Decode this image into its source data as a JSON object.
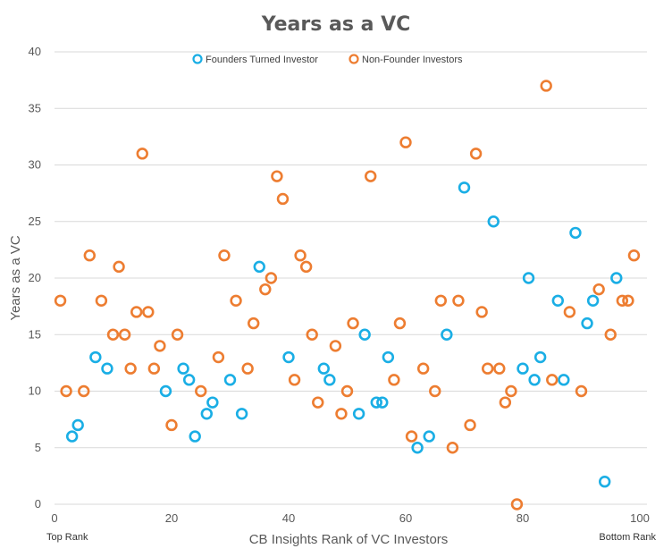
{
  "chart_data": {
    "type": "scatter",
    "title": "Years as a VC",
    "xlabel": "CB Insights Rank of VC Investors",
    "ylabel": "Years as a VC",
    "xlim": [
      0,
      100
    ],
    "ylim": [
      0,
      40
    ],
    "xticks": [
      0,
      20,
      40,
      60,
      80,
      100
    ],
    "yticks": [
      0,
      5,
      10,
      15,
      20,
      25,
      30,
      35,
      40
    ],
    "grid": "horizontal",
    "legend_position": "top-center",
    "x_start_label": "Top Rank",
    "x_end_label": "Bottom Rank",
    "series": [
      {
        "name": "Founders Turned Investor",
        "color": "#1aaee5",
        "points": [
          {
            "x": 3,
            "y": 6
          },
          {
            "x": 4,
            "y": 7
          },
          {
            "x": 7,
            "y": 13
          },
          {
            "x": 9,
            "y": 12
          },
          {
            "x": 19,
            "y": 10
          },
          {
            "x": 22,
            "y": 12
          },
          {
            "x": 23,
            "y": 11
          },
          {
            "x": 24,
            "y": 6
          },
          {
            "x": 26,
            "y": 8
          },
          {
            "x": 27,
            "y": 9
          },
          {
            "x": 30,
            "y": 11
          },
          {
            "x": 32,
            "y": 8
          },
          {
            "x": 35,
            "y": 21
          },
          {
            "x": 40,
            "y": 13
          },
          {
            "x": 46,
            "y": 12
          },
          {
            "x": 47,
            "y": 11
          },
          {
            "x": 52,
            "y": 8
          },
          {
            "x": 53,
            "y": 15
          },
          {
            "x": 55,
            "y": 9
          },
          {
            "x": 56,
            "y": 9
          },
          {
            "x": 57,
            "y": 13
          },
          {
            "x": 62,
            "y": 5
          },
          {
            "x": 64,
            "y": 6
          },
          {
            "x": 67,
            "y": 15
          },
          {
            "x": 70,
            "y": 28
          },
          {
            "x": 75,
            "y": 25
          },
          {
            "x": 80,
            "y": 12
          },
          {
            "x": 81,
            "y": 20
          },
          {
            "x": 82,
            "y": 11
          },
          {
            "x": 83,
            "y": 13
          },
          {
            "x": 86,
            "y": 18
          },
          {
            "x": 87,
            "y": 11
          },
          {
            "x": 89,
            "y": 24
          },
          {
            "x": 91,
            "y": 16
          },
          {
            "x": 92,
            "y": 18
          },
          {
            "x": 94,
            "y": 2
          },
          {
            "x": 96,
            "y": 20
          }
        ]
      },
      {
        "name": "Non-Founder Investors",
        "color": "#ed7d31",
        "points": [
          {
            "x": 1,
            "y": 18
          },
          {
            "x": 2,
            "y": 10
          },
          {
            "x": 5,
            "y": 10
          },
          {
            "x": 6,
            "y": 22
          },
          {
            "x": 8,
            "y": 18
          },
          {
            "x": 10,
            "y": 15
          },
          {
            "x": 11,
            "y": 21
          },
          {
            "x": 12,
            "y": 15
          },
          {
            "x": 13,
            "y": 12
          },
          {
            "x": 14,
            "y": 17
          },
          {
            "x": 15,
            "y": 31
          },
          {
            "x": 16,
            "y": 17
          },
          {
            "x": 17,
            "y": 12
          },
          {
            "x": 18,
            "y": 14
          },
          {
            "x": 20,
            "y": 7
          },
          {
            "x": 21,
            "y": 15
          },
          {
            "x": 25,
            "y": 10
          },
          {
            "x": 28,
            "y": 13
          },
          {
            "x": 29,
            "y": 22
          },
          {
            "x": 31,
            "y": 18
          },
          {
            "x": 33,
            "y": 12
          },
          {
            "x": 34,
            "y": 16
          },
          {
            "x": 36,
            "y": 19
          },
          {
            "x": 37,
            "y": 20
          },
          {
            "x": 38,
            "y": 29
          },
          {
            "x": 39,
            "y": 27
          },
          {
            "x": 41,
            "y": 11
          },
          {
            "x": 42,
            "y": 22
          },
          {
            "x": 43,
            "y": 21
          },
          {
            "x": 44,
            "y": 15
          },
          {
            "x": 45,
            "y": 9
          },
          {
            "x": 48,
            "y": 14
          },
          {
            "x": 49,
            "y": 8
          },
          {
            "x": 50,
            "y": 10
          },
          {
            "x": 51,
            "y": 16
          },
          {
            "x": 54,
            "y": 29
          },
          {
            "x": 58,
            "y": 11
          },
          {
            "x": 59,
            "y": 16
          },
          {
            "x": 60,
            "y": 32
          },
          {
            "x": 61,
            "y": 6
          },
          {
            "x": 63,
            "y": 12
          },
          {
            "x": 65,
            "y": 10
          },
          {
            "x": 66,
            "y": 18
          },
          {
            "x": 68,
            "y": 5
          },
          {
            "x": 69,
            "y": 18
          },
          {
            "x": 71,
            "y": 7
          },
          {
            "x": 72,
            "y": 31
          },
          {
            "x": 73,
            "y": 17
          },
          {
            "x": 74,
            "y": 12
          },
          {
            "x": 76,
            "y": 12
          },
          {
            "x": 77,
            "y": 9
          },
          {
            "x": 78,
            "y": 10
          },
          {
            "x": 79,
            "y": 0
          },
          {
            "x": 84,
            "y": 37
          },
          {
            "x": 85,
            "y": 11
          },
          {
            "x": 88,
            "y": 17
          },
          {
            "x": 90,
            "y": 10
          },
          {
            "x": 93,
            "y": 19
          },
          {
            "x": 95,
            "y": 15
          },
          {
            "x": 97,
            "y": 18
          },
          {
            "x": 98,
            "y": 18
          },
          {
            "x": 99,
            "y": 22
          }
        ]
      }
    ]
  }
}
